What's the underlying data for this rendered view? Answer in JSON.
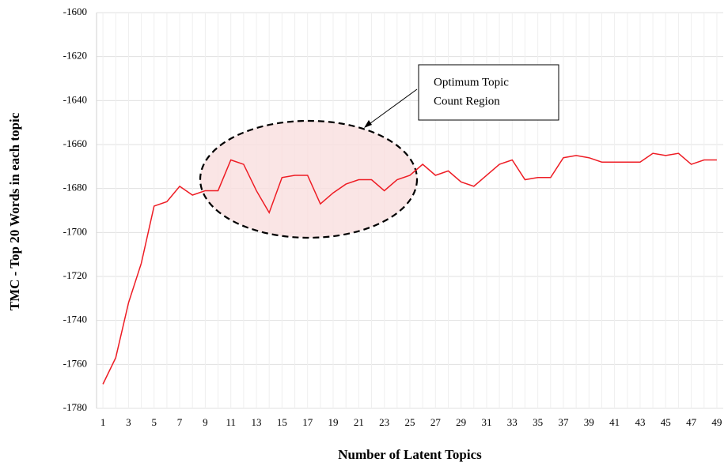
{
  "chart_data": {
    "type": "line",
    "xlabel": "Number of Latent Topics",
    "ylabel": "TMC - Top 20 Words in each topic",
    "annotation": [
      "Optimum Topic",
      "Count Region"
    ],
    "categories": [
      "1",
      null,
      "3",
      null,
      "5",
      null,
      "7",
      null,
      "9",
      null,
      "11",
      null,
      "13",
      null,
      "15",
      null,
      "17",
      null,
      "19",
      null,
      "21",
      null,
      "23",
      null,
      "25",
      null,
      "27",
      null,
      "29",
      null,
      "31",
      null,
      "33",
      null,
      "35",
      null,
      "37",
      null,
      "39",
      null,
      "41",
      null,
      "43",
      null,
      "45",
      null,
      "47",
      null,
      "49"
    ],
    "values": [
      -1769,
      -1757,
      -1732,
      -1714,
      -1688,
      -1686,
      -1679,
      -1683,
      -1681,
      -1681,
      -1667,
      -1669,
      -1681,
      -1691,
      -1675,
      -1674,
      -1674,
      -1687,
      -1682,
      -1678,
      -1676,
      -1676,
      -1681,
      -1676,
      -1674,
      -1669,
      -1674,
      -1672,
      -1677,
      -1679,
      -1674,
      -1669,
      -1667,
      -1676,
      -1675,
      -1675,
      -1666,
      -1665,
      -1666,
      -1668,
      -1668,
      -1668,
      -1668,
      -1664,
      -1665,
      -1664,
      -1669,
      -1667,
      -1667
    ],
    "color": "#ee1c24",
    "ylim": [
      -1780,
      -1600
    ],
    "yticks": [
      -1780,
      -1760,
      -1740,
      -1720,
      -1700,
      -1680,
      -1660,
      -1640,
      -1620,
      -1600
    ],
    "grid": true
  }
}
